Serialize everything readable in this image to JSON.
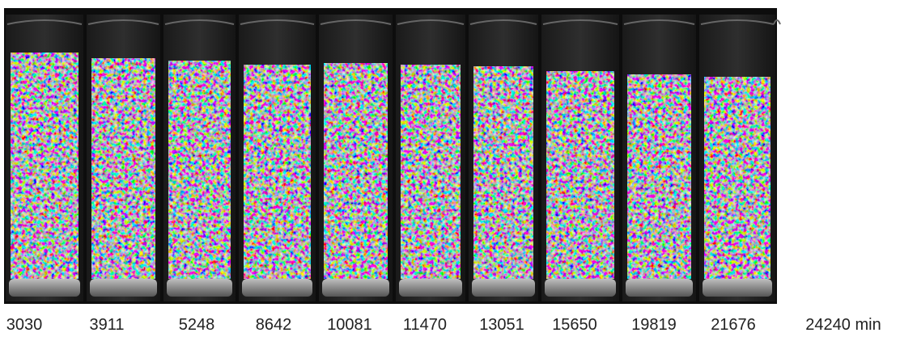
{
  "panels": [
    {
      "label": "3030"
    },
    {
      "label": "3911"
    },
    {
      "label": "5248"
    },
    {
      "label": "8642"
    },
    {
      "label": "10081"
    },
    {
      "label": "11470"
    },
    {
      "label": "13051"
    },
    {
      "label": "15650"
    },
    {
      "label": "19819"
    },
    {
      "label": "21676"
    },
    {
      "label": "24240 min"
    }
  ]
}
